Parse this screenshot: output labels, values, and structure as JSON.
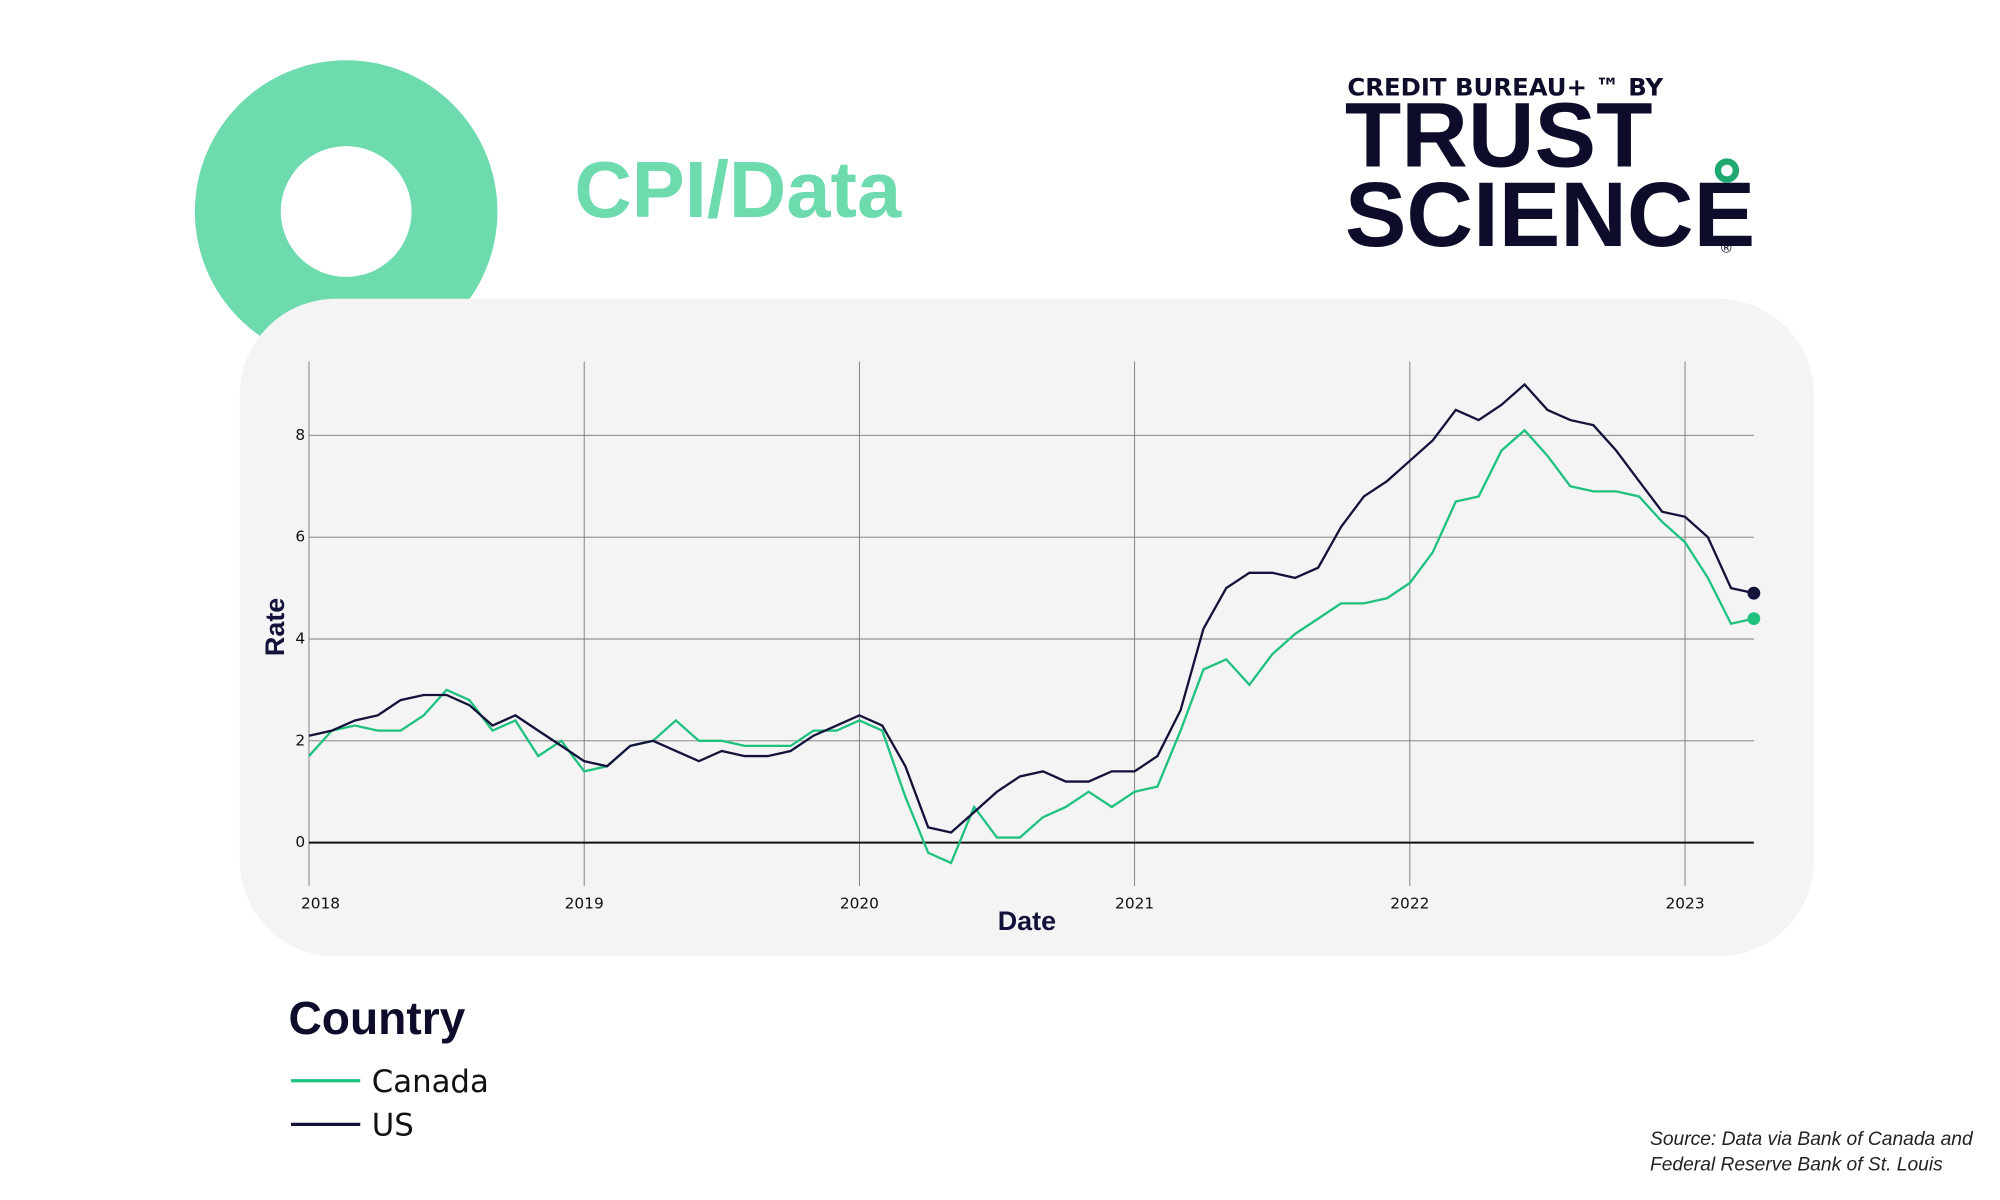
{
  "chart_data": {
    "type": "line",
    "title": "CPI/Data",
    "brand": {
      "tagline": "CREDIT BUREAU+ ™ BY",
      "line1": "TRUST",
      "line2": "SCIENCE",
      "mark": "®"
    },
    "x_label": "Date",
    "y_label": "Rate",
    "x": [
      2018,
      2018.083,
      2018.167,
      2018.25,
      2018.333,
      2018.417,
      2018.5,
      2018.583,
      2018.667,
      2018.75,
      2018.833,
      2018.917,
      2019,
      2019.083,
      2019.167,
      2019.25,
      2019.333,
      2019.417,
      2019.5,
      2019.583,
      2019.667,
      2019.75,
      2019.833,
      2019.917,
      2020,
      2020.083,
      2020.167,
      2020.25,
      2020.333,
      2020.417,
      2020.5,
      2020.583,
      2020.667,
      2020.75,
      2020.833,
      2020.917,
      2021,
      2021.083,
      2021.167,
      2021.25,
      2021.333,
      2021.417,
      2021.5,
      2021.583,
      2021.667,
      2021.75,
      2021.833,
      2021.917,
      2022,
      2022.083,
      2022.167,
      2022.25,
      2022.333,
      2022.417,
      2022.5,
      2022.583,
      2022.667,
      2022.75,
      2022.833,
      2022.917,
      2023,
      2023.083,
      2023.167,
      2023.25
    ],
    "series": [
      {
        "name": "Canada",
        "color": "#1fc17f",
        "values": [
          1.7,
          2.2,
          2.3,
          2.2,
          2.2,
          2.5,
          3.0,
          2.8,
          2.2,
          2.4,
          1.7,
          2.0,
          1.4,
          1.5,
          1.9,
          2.0,
          2.4,
          2.0,
          2.0,
          1.9,
          1.9,
          1.9,
          2.2,
          2.2,
          2.4,
          2.2,
          0.9,
          -0.2,
          -0.4,
          0.7,
          0.1,
          0.1,
          0.5,
          0.7,
          1.0,
          0.7,
          1.0,
          1.1,
          2.2,
          3.4,
          3.6,
          3.1,
          3.7,
          4.1,
          4.4,
          4.7,
          4.7,
          4.8,
          5.1,
          5.7,
          6.7,
          6.8,
          7.7,
          8.1,
          7.6,
          7.0,
          6.9,
          6.9,
          6.8,
          6.3,
          5.9,
          5.2,
          4.3,
          4.4
        ]
      },
      {
        "name": "US",
        "color": "#12123a",
        "values": [
          2.1,
          2.2,
          2.4,
          2.5,
          2.8,
          2.9,
          2.9,
          2.7,
          2.3,
          2.5,
          2.2,
          1.9,
          1.6,
          1.5,
          1.9,
          2.0,
          1.8,
          1.6,
          1.8,
          1.7,
          1.7,
          1.8,
          2.1,
          2.3,
          2.5,
          2.3,
          1.5,
          0.3,
          0.2,
          0.6,
          1.0,
          1.3,
          1.4,
          1.2,
          1.2,
          1.4,
          1.4,
          1.7,
          2.6,
          4.2,
          5.0,
          5.3,
          5.3,
          5.2,
          5.4,
          6.2,
          6.8,
          7.1,
          7.5,
          7.9,
          8.5,
          8.3,
          8.6,
          9.0,
          8.5,
          8.3,
          8.2,
          7.7,
          7.1,
          6.5,
          6.4,
          6.0,
          5.0,
          4.9
        ]
      }
    ],
    "xlim": [
      2018,
      2023.25
    ],
    "xticks": [
      2018,
      2019,
      2020,
      2021,
      2022,
      2023
    ],
    "ylim": [
      -0.85,
      9.45
    ],
    "yticks": [
      0,
      2,
      4,
      6,
      8
    ],
    "grid": true,
    "legend_title": "Country",
    "source": [
      "Source: Data via Bank of Canada and",
      "Federal Reserve Bank of St. Louis"
    ]
  }
}
